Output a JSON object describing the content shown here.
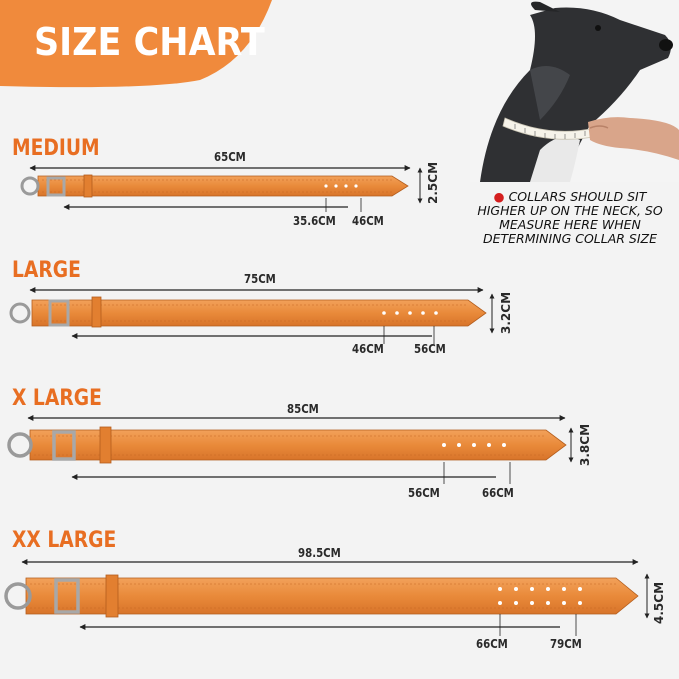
{
  "header": {
    "title": "SIZE CHART"
  },
  "colors": {
    "accent": "#e86e22",
    "collar": "#e98a3a",
    "background": "#f3f3f3"
  },
  "sizes": [
    {
      "label": "MEDIUM",
      "length": "65CM",
      "min": "35.6CM",
      "max": "46CM",
      "width": "2.5CM"
    },
    {
      "label": "LARGE",
      "length": "75CM",
      "min": "46CM",
      "max": "56CM",
      "width": "3.2CM"
    },
    {
      "label": "X LARGE",
      "length": "85CM",
      "min": "56CM",
      "max": "66CM",
      "width": "3.8CM"
    },
    {
      "label": "XX LARGE",
      "length": "98.5CM",
      "min": "66CM",
      "max": "79CM",
      "width": "4.5CM"
    }
  ],
  "note": {
    "bullet_icon": "red-dot-icon",
    "text": "COLLARS SHOULD SIT HIGHER UP ON THE NECK, SO MEASURE HERE WHEN DETERMINING COLLAR SIZE"
  },
  "photo": {
    "subject": "dog-photo"
  }
}
